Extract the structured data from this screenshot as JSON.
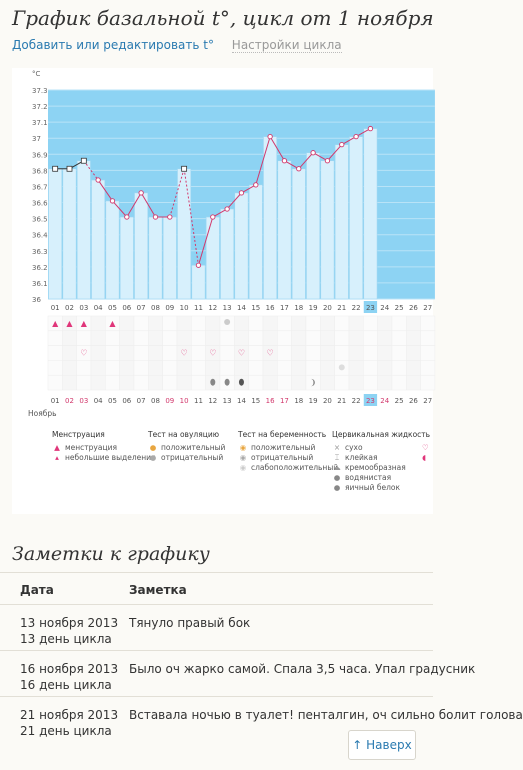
{
  "page": {
    "title": "График базальной t°, цикл от 1 ноября",
    "link_edit": "Добавить или редактировать t°",
    "link_settings": "Настройки цикла"
  },
  "chart_data": {
    "type": "line",
    "ylabel": "°C",
    "ylim": [
      36,
      37.3
    ],
    "yticks": [
      "37.3",
      "37.2",
      "37.1",
      "37",
      "36.9",
      "36.8",
      "36.7",
      "36.6",
      "36.5",
      "36.4",
      "36.3",
      "36.2",
      "36.1",
      "36"
    ],
    "x_top": [
      "01",
      "02",
      "03",
      "04",
      "05",
      "06",
      "07",
      "08",
      "09",
      "10",
      "11",
      "12",
      "13",
      "14",
      "15",
      "16",
      "17",
      "18",
      "19",
      "20",
      "21",
      "22",
      "23",
      "24",
      "25",
      "26",
      "27"
    ],
    "x_bottom": [
      "01",
      "02",
      "03",
      "04",
      "05",
      "06",
      "07",
      "08",
      "09",
      "10",
      "11",
      "12",
      "13",
      "14",
      "15",
      "16",
      "17",
      "18",
      "19",
      "20",
      "21",
      "22",
      "23",
      "24",
      "25",
      "26",
      "27"
    ],
    "highlight_day": "23",
    "red_days": [
      "02",
      "03",
      "09",
      "10",
      "16",
      "17",
      "23",
      "24"
    ],
    "month_label": "Ноябрь",
    "series": [
      {
        "values": [
          36.81,
          36.81,
          36.86,
          36.74,
          36.61,
          36.51,
          36.66,
          36.51,
          36.51,
          36.81,
          36.21,
          36.51,
          36.56,
          36.66,
          36.71,
          37.01,
          36.86,
          36.81,
          36.91,
          36.86,
          36.96,
          37.01,
          37.06,
          null,
          null,
          null,
          null
        ]
      }
    ],
    "excluded_points": [
      "01",
      "02",
      "03",
      "10"
    ],
    "menstruation_days": [
      "01",
      "02",
      "03",
      "05"
    ],
    "ovulation_test_days": [
      "13"
    ],
    "heart_days": [
      "03",
      "10",
      "12",
      "14",
      "16"
    ],
    "cervical_fluid": {
      "13": "drop",
      "12": "drop",
      "14": "drop-dark",
      "19": "creamy",
      "21": "dry"
    }
  },
  "legend": {
    "menstruation": {
      "title": "Менструация",
      "items": [
        "менструация",
        "небольшие выделения"
      ]
    },
    "ovulation": {
      "title": "Тест на овуляцию",
      "items": [
        "положительный",
        "отрицательный"
      ]
    },
    "pregnancy": {
      "title": "Тест на беременность",
      "items": [
        "положительный",
        "отрицательный",
        "слабоположительный"
      ]
    },
    "fluid": {
      "title": "Цервикальная жидкость",
      "items": [
        "сухо",
        "клейкая",
        "кремообразная",
        "водянистая",
        "яичный белок"
      ]
    }
  },
  "notes": {
    "title": "Заметки к графику",
    "headers": {
      "date": "Дата",
      "note": "Заметка"
    },
    "rows": [
      {
        "date": "13 ноября 2013",
        "cycle_day": "13 день цикла",
        "note": "Тянуло правый бок"
      },
      {
        "date": "16 ноября 2013",
        "cycle_day": "16 день цикла",
        "note": "Было оч жарко самой. Спала 3,5 часа. Упал градусник"
      },
      {
        "date": "21 ноября 2013",
        "cycle_day": "21 день цикла",
        "note": "Вставала ночью в туалет! пенталгин, оч сильно болит голова"
      }
    ]
  },
  "up_button": "↑ Наверх"
}
